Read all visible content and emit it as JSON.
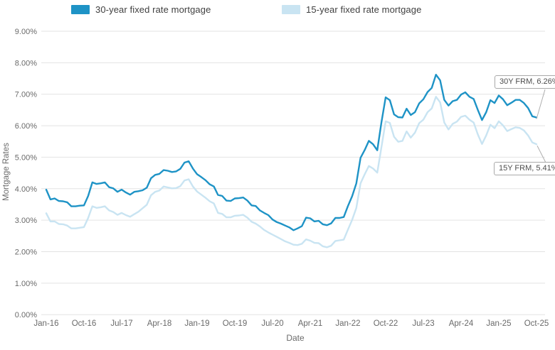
{
  "chart_data": {
    "type": "line",
    "title": "",
    "xlabel": "Date",
    "ylabel": "Mortgage Rates",
    "ylim": [
      0,
      9
    ],
    "grid": "horizontal",
    "legend_position": "top",
    "x_unit": "month",
    "x_range": [
      "Jan-16",
      "Oct-25"
    ],
    "ytick_labels": [
      "0.00%",
      "1.00%",
      "2.00%",
      "3.00%",
      "4.00%",
      "5.00%",
      "6.00%",
      "7.00%",
      "8.00%",
      "9.00%"
    ],
    "xtick_labels": [
      "Jan-16",
      "Oct-16",
      "Jul-17",
      "Apr-18",
      "Jan-19",
      "Oct-19",
      "Jul-20",
      "Apr-21",
      "Jan-22",
      "Oct-22",
      "Jul-23",
      "Apr-24",
      "Jan-25",
      "Oct-25"
    ],
    "xtick_month_indices": [
      0,
      9,
      18,
      27,
      36,
      45,
      54,
      63,
      72,
      81,
      90,
      99,
      108,
      117
    ],
    "series": [
      {
        "name": "30-year fixed rate mortgage",
        "color": "#1E93C6",
        "values": [
          3.97,
          3.66,
          3.69,
          3.61,
          3.6,
          3.57,
          3.44,
          3.44,
          3.46,
          3.47,
          3.77,
          4.2,
          4.15,
          4.17,
          4.2,
          4.05,
          4.01,
          3.9,
          3.97,
          3.88,
          3.81,
          3.9,
          3.92,
          3.95,
          4.03,
          4.33,
          4.44,
          4.47,
          4.59,
          4.57,
          4.53,
          4.55,
          4.63,
          4.83,
          4.87,
          4.64,
          4.46,
          4.37,
          4.27,
          4.14,
          4.07,
          3.8,
          3.77,
          3.62,
          3.61,
          3.69,
          3.7,
          3.72,
          3.62,
          3.47,
          3.45,
          3.31,
          3.23,
          3.16,
          3.02,
          2.94,
          2.89,
          2.83,
          2.77,
          2.68,
          2.74,
          2.81,
          3.08,
          3.06,
          2.96,
          2.98,
          2.87,
          2.84,
          2.9,
          3.07,
          3.07,
          3.1,
          3.45,
          3.76,
          4.17,
          4.98,
          5.23,
          5.52,
          5.41,
          5.22,
          6.11,
          6.9,
          6.81,
          6.36,
          6.27,
          6.26,
          6.54,
          6.34,
          6.43,
          6.71,
          6.84,
          7.07,
          7.2,
          7.62,
          7.44,
          6.82,
          6.64,
          6.78,
          6.82,
          6.99,
          7.06,
          6.92,
          6.85,
          6.5,
          6.18,
          6.43,
          6.81,
          6.72,
          6.96,
          6.84,
          6.65,
          6.73,
          6.82,
          6.82,
          6.72,
          6.56,
          6.3,
          6.26
        ]
      },
      {
        "name": "15-year fixed rate mortgage",
        "color": "#C9E4F2",
        "values": [
          3.22,
          2.96,
          2.96,
          2.88,
          2.87,
          2.83,
          2.74,
          2.74,
          2.76,
          2.78,
          3.07,
          3.44,
          3.39,
          3.41,
          3.44,
          3.31,
          3.26,
          3.17,
          3.23,
          3.16,
          3.11,
          3.19,
          3.27,
          3.38,
          3.49,
          3.79,
          3.9,
          3.94,
          4.07,
          4.04,
          4.01,
          4.02,
          4.08,
          4.26,
          4.3,
          4.07,
          3.91,
          3.81,
          3.71,
          3.6,
          3.53,
          3.23,
          3.2,
          3.09,
          3.09,
          3.14,
          3.15,
          3.17,
          3.08,
          2.95,
          2.89,
          2.8,
          2.69,
          2.61,
          2.54,
          2.47,
          2.4,
          2.33,
          2.28,
          2.22,
          2.21,
          2.25,
          2.39,
          2.35,
          2.28,
          2.27,
          2.17,
          2.14,
          2.19,
          2.34,
          2.36,
          2.38,
          2.7,
          3.01,
          3.39,
          4.17,
          4.46,
          4.72,
          4.64,
          4.51,
          5.32,
          6.14,
          6.09,
          5.65,
          5.49,
          5.52,
          5.82,
          5.62,
          5.78,
          6.08,
          6.19,
          6.43,
          6.55,
          6.92,
          6.74,
          6.1,
          5.88,
          6.06,
          6.13,
          6.28,
          6.32,
          6.19,
          6.1,
          5.72,
          5.42,
          5.69,
          6.03,
          5.92,
          6.14,
          6.01,
          5.83,
          5.89,
          5.95,
          5.93,
          5.85,
          5.69,
          5.47,
          5.41
        ]
      }
    ],
    "annotations": [
      {
        "label": "30Y FRM, 6.26%",
        "series": 0,
        "value": 6.26
      },
      {
        "label": "15Y FRM, 5.41%",
        "series": 1,
        "value": 5.41
      }
    ],
    "colors": {
      "gridline": "#e3e3e3",
      "tick_text": "#6a6a6a",
      "leader_line": "#aeaeae"
    }
  }
}
